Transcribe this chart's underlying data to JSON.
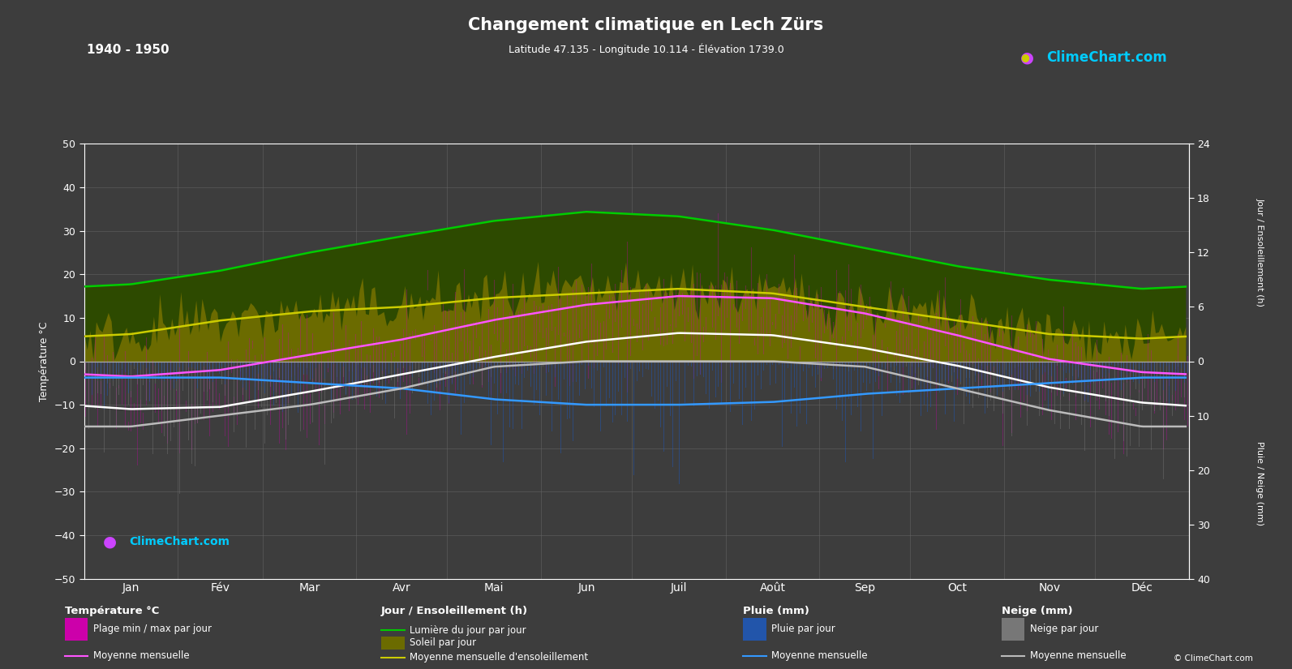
{
  "title": "Changement climatique en Lech Zürs",
  "subtitle": "Latitude 47.135 - Longitude 10.114 - Élévation 1739.0",
  "year_range": "1940 - 1950",
  "bg_color": "#3d3d3d",
  "text_color": "#ffffff",
  "months": [
    "Jan",
    "Fév",
    "Mar",
    "Avr",
    "Mai",
    "Jun",
    "Juil",
    "Août",
    "Sep",
    "Oct",
    "Nov",
    "Déc"
  ],
  "month_days": [
    31,
    28,
    31,
    30,
    31,
    30,
    31,
    31,
    30,
    31,
    30,
    31
  ],
  "temp_ylim": [
    -50,
    50
  ],
  "temp_mean_max": [
    -3.5,
    -2.0,
    1.5,
    5.0,
    9.5,
    13.0,
    15.0,
    14.5,
    11.0,
    6.0,
    0.5,
    -2.5
  ],
  "temp_mean_min": [
    -11.0,
    -10.5,
    -7.0,
    -3.0,
    1.0,
    4.5,
    6.5,
    6.0,
    3.0,
    -1.0,
    -6.0,
    -9.5
  ],
  "daylight_hours": [
    8.5,
    10.0,
    12.0,
    13.8,
    15.5,
    16.5,
    16.0,
    14.5,
    12.5,
    10.5,
    9.0,
    8.0
  ],
  "sunshine_hours_daily": [
    3.0,
    4.5,
    5.5,
    6.0,
    7.0,
    7.5,
    8.0,
    7.5,
    6.0,
    4.5,
    3.0,
    2.5
  ],
  "rain_mean_mm": [
    3.0,
    3.0,
    4.0,
    5.0,
    7.0,
    8.0,
    8.0,
    7.5,
    6.0,
    5.0,
    4.0,
    3.0
  ],
  "snow_mean_mm": [
    12,
    10,
    8,
    5,
    1,
    0,
    0,
    0,
    1,
    5,
    9,
    12
  ],
  "rain_std_mm": [
    3,
    3,
    4,
    5,
    7,
    9,
    9,
    8,
    7,
    5,
    4,
    3
  ],
  "snow_std_mm": [
    10,
    9,
    7,
    4,
    1,
    0,
    0,
    0,
    1,
    4,
    8,
    10
  ],
  "temp_std": [
    6,
    6,
    6,
    6,
    6,
    5,
    5,
    5,
    5,
    6,
    6,
    6
  ],
  "grid_color": "#666666",
  "color_daylight_fill": "#2d4a00",
  "color_daylight_line": "#00cc00",
  "color_sunshine_fill": "#6b6b00",
  "color_sunshine_line": "#cccc00",
  "color_temp_bar": "#cc00aa",
  "color_temp_max_line": "#ff55ff",
  "color_temp_min_line": "#ffffff",
  "color_rain_bar": "#2255aa",
  "color_rain_line": "#3399ff",
  "color_snow_bar": "#777777",
  "color_snow_line": "#bbbbbb",
  "right_axis_sun_ticks": [
    0,
    6,
    12,
    18,
    24
  ],
  "right_axis_precip_ticks": [
    0,
    10,
    20,
    30,
    40
  ],
  "left_axis_ticks": [
    -50,
    -40,
    -30,
    -20,
    -10,
    0,
    10,
    20,
    30,
    40,
    50
  ],
  "sun_scale": 2.083,
  "precip_scale": 1.25,
  "climechart_color": "#00ccff"
}
